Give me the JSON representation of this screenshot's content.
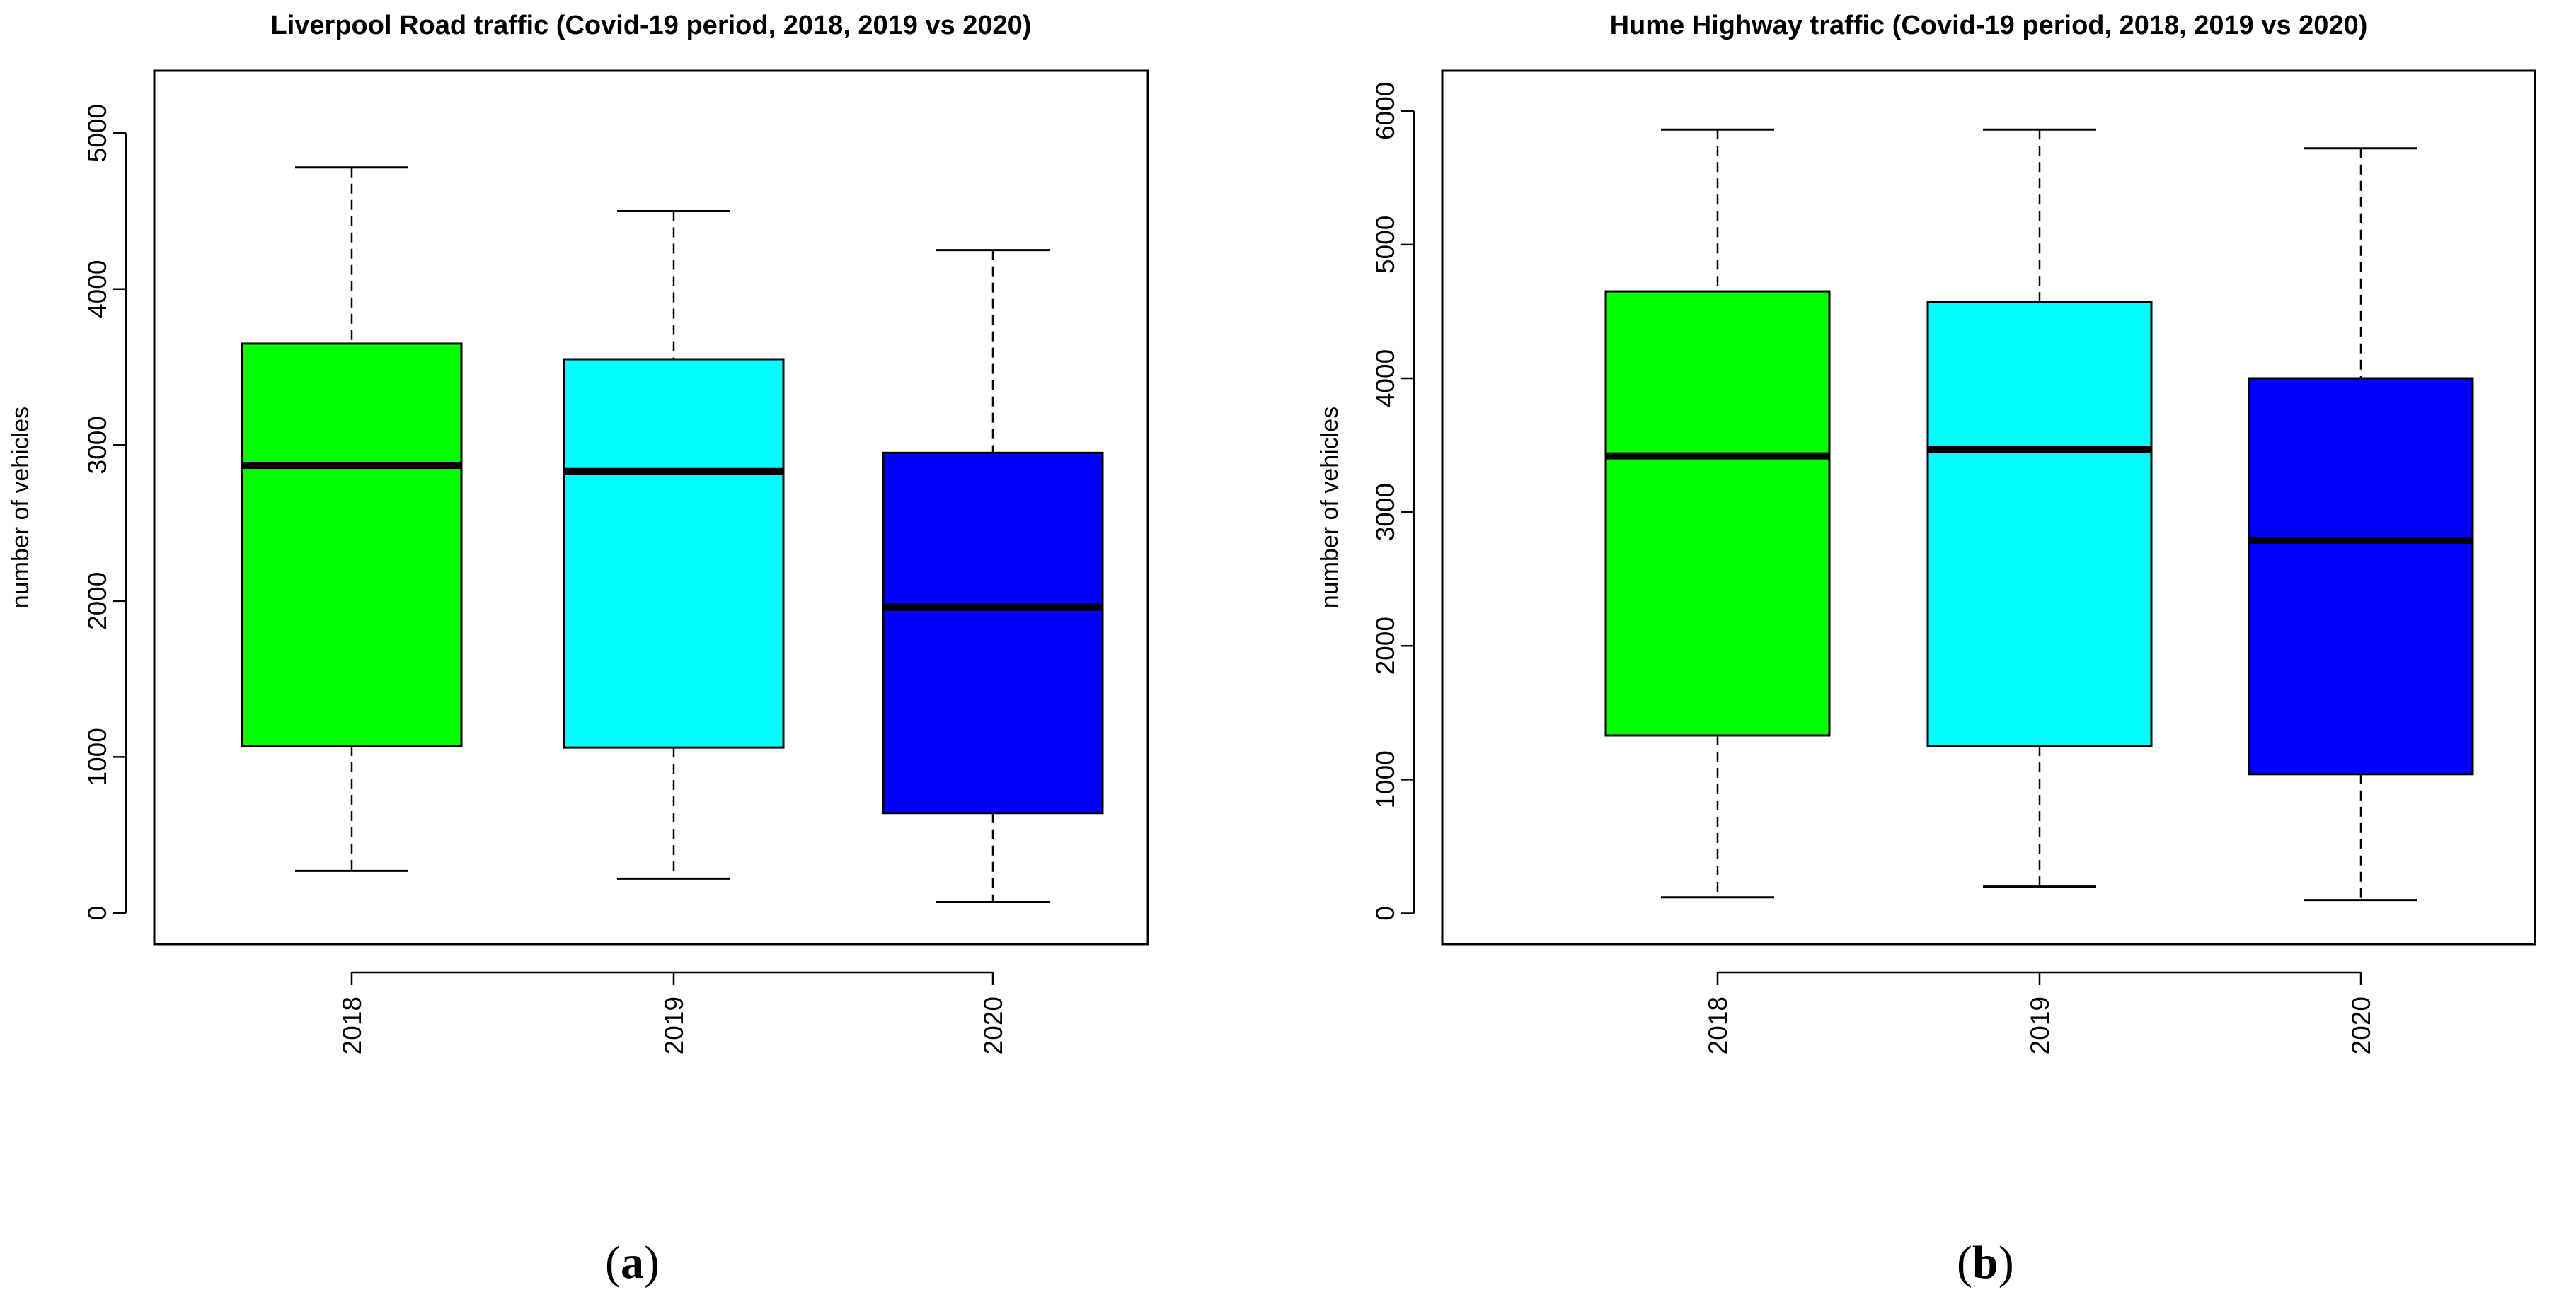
{
  "chart_data": [
    {
      "type": "boxplot",
      "title": "Liverpool Road traffic (Covid-19 period, 2018, 2019 vs 2020)",
      "xlabel": "",
      "ylabel": "number of vehicles",
      "ylim": [
        -200,
        5400
      ],
      "yticks": [
        0,
        1000,
        2000,
        3000,
        4000,
        5000
      ],
      "ytick_labels": [
        "0",
        "1000",
        "2000",
        "3000",
        "4000",
        "5000"
      ],
      "categories": [
        "2018",
        "2019",
        "2020"
      ],
      "colors": [
        "#00ff00",
        "#00ffff",
        "#0000ff"
      ],
      "boxes": [
        {
          "label": "2018",
          "min": 270,
          "q1": 1070,
          "median": 2870,
          "q3": 3650,
          "max": 4780
        },
        {
          "label": "2019",
          "min": 220,
          "q1": 1060,
          "median": 2830,
          "q3": 3550,
          "max": 4500
        },
        {
          "label": "2020",
          "min": 70,
          "q1": 640,
          "median": 1960,
          "q3": 2950,
          "max": 4250
        }
      ],
      "caption_letter": "a"
    },
    {
      "type": "boxplot",
      "title": "Hume Highway traffic (Covid-19 period, 2018, 2019 vs 2020)",
      "xlabel": "",
      "ylabel": "number of vehicles",
      "ylim": [
        -230,
        6300
      ],
      "yticks": [
        0,
        1000,
        2000,
        3000,
        4000,
        5000,
        6000
      ],
      "ytick_labels": [
        "0",
        "1000",
        "2000",
        "3000",
        "4000",
        "5000",
        "6000"
      ],
      "categories": [
        "2018",
        "2019",
        "2020"
      ],
      "colors": [
        "#00ff00",
        "#00ffff",
        "#0000ff"
      ],
      "boxes": [
        {
          "label": "2018",
          "min": 120,
          "q1": 1330,
          "median": 3420,
          "q3": 4650,
          "max": 5860
        },
        {
          "label": "2019",
          "min": 200,
          "q1": 1250,
          "median": 3470,
          "q3": 4570,
          "max": 5860
        },
        {
          "label": "2020",
          "min": 100,
          "q1": 1040,
          "median": 2790,
          "q3": 4000,
          "max": 5720
        }
      ],
      "caption_letter": "b"
    }
  ]
}
